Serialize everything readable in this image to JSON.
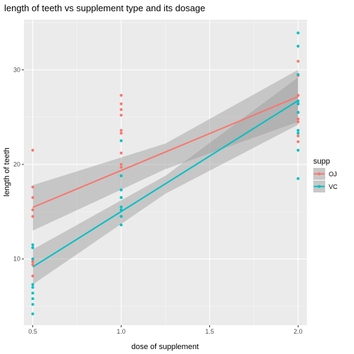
{
  "chart_data": {
    "type": "scatter",
    "title": "length of teeth vs supplement type and its dosage",
    "xlabel": "dose of supplement",
    "ylabel": "length of teeth",
    "xlim": [
      0.45,
      2.05
    ],
    "ylim": [
      3.0,
      35.3
    ],
    "x_ticks": [
      0.5,
      1.0,
      1.5,
      2.0
    ],
    "x_tick_labels": [
      "0.5",
      "1.0",
      "1.5",
      "2.0"
    ],
    "y_ticks": [
      10,
      20,
      30
    ],
    "y_tick_labels": [
      "10",
      "20",
      "30"
    ],
    "grid": true,
    "legend": {
      "title": "supp",
      "placement": "right"
    },
    "series": [
      {
        "name": "OJ",
        "color": "#F8766D",
        "points": [
          [
            0.5,
            15.2
          ],
          [
            0.5,
            21.5
          ],
          [
            0.5,
            17.6
          ],
          [
            0.5,
            9.7
          ],
          [
            0.5,
            14.5
          ],
          [
            0.5,
            10.0
          ],
          [
            0.5,
            8.2
          ],
          [
            0.5,
            9.4
          ],
          [
            0.5,
            16.5
          ],
          [
            0.5,
            9.7
          ],
          [
            1.0,
            19.7
          ],
          [
            1.0,
            23.3
          ],
          [
            1.0,
            23.6
          ],
          [
            1.0,
            26.4
          ],
          [
            1.0,
            20.0
          ],
          [
            1.0,
            25.2
          ],
          [
            1.0,
            25.8
          ],
          [
            1.0,
            21.2
          ],
          [
            1.0,
            14.5
          ],
          [
            1.0,
            27.3
          ],
          [
            2.0,
            25.5
          ],
          [
            2.0,
            26.4
          ],
          [
            2.0,
            22.4
          ],
          [
            2.0,
            24.5
          ],
          [
            2.0,
            24.8
          ],
          [
            2.0,
            30.9
          ],
          [
            2.0,
            26.4
          ],
          [
            2.0,
            27.3
          ],
          [
            2.0,
            29.4
          ],
          [
            2.0,
            23.0
          ]
        ],
        "fit": {
          "intercept": 11.55,
          "slope": 7.81,
          "x_range": [
            0.5,
            2.0
          ]
        },
        "band": {
          "x": [
            0.5,
            1.25,
            2.0
          ],
          "lower": [
            13.0,
            19.5,
            24.5
          ],
          "upper": [
            17.8,
            22.2,
            30.0
          ]
        }
      },
      {
        "name": "VC",
        "color": "#00BFC4",
        "points": [
          [
            0.5,
            4.2
          ],
          [
            0.5,
            11.5
          ],
          [
            0.5,
            7.3
          ],
          [
            0.5,
            5.8
          ],
          [
            0.5,
            6.4
          ],
          [
            0.5,
            10.0
          ],
          [
            0.5,
            11.2
          ],
          [
            0.5,
            11.2
          ],
          [
            0.5,
            5.2
          ],
          [
            0.5,
            7.0
          ],
          [
            1.0,
            16.5
          ],
          [
            1.0,
            16.5
          ],
          [
            1.0,
            15.2
          ],
          [
            1.0,
            17.3
          ],
          [
            1.0,
            22.5
          ],
          [
            1.0,
            17.3
          ],
          [
            1.0,
            13.6
          ],
          [
            1.0,
            14.5
          ],
          [
            1.0,
            18.8
          ],
          [
            1.0,
            15.5
          ],
          [
            2.0,
            23.6
          ],
          [
            2.0,
            18.5
          ],
          [
            2.0,
            33.9
          ],
          [
            2.0,
            25.5
          ],
          [
            2.0,
            26.4
          ],
          [
            2.0,
            32.5
          ],
          [
            2.0,
            26.7
          ],
          [
            2.0,
            21.5
          ],
          [
            2.0,
            23.3
          ],
          [
            2.0,
            29.5
          ]
        ],
        "fit": {
          "intercept": 3.3,
          "slope": 11.72,
          "x_range": [
            0.5,
            2.0
          ]
        },
        "band": {
          "x": [
            0.5,
            1.25,
            2.0
          ],
          "lower": [
            7.3,
            16.9,
            24.2
          ],
          "upper": [
            11.0,
            18.8,
            29.2
          ]
        }
      }
    ]
  }
}
